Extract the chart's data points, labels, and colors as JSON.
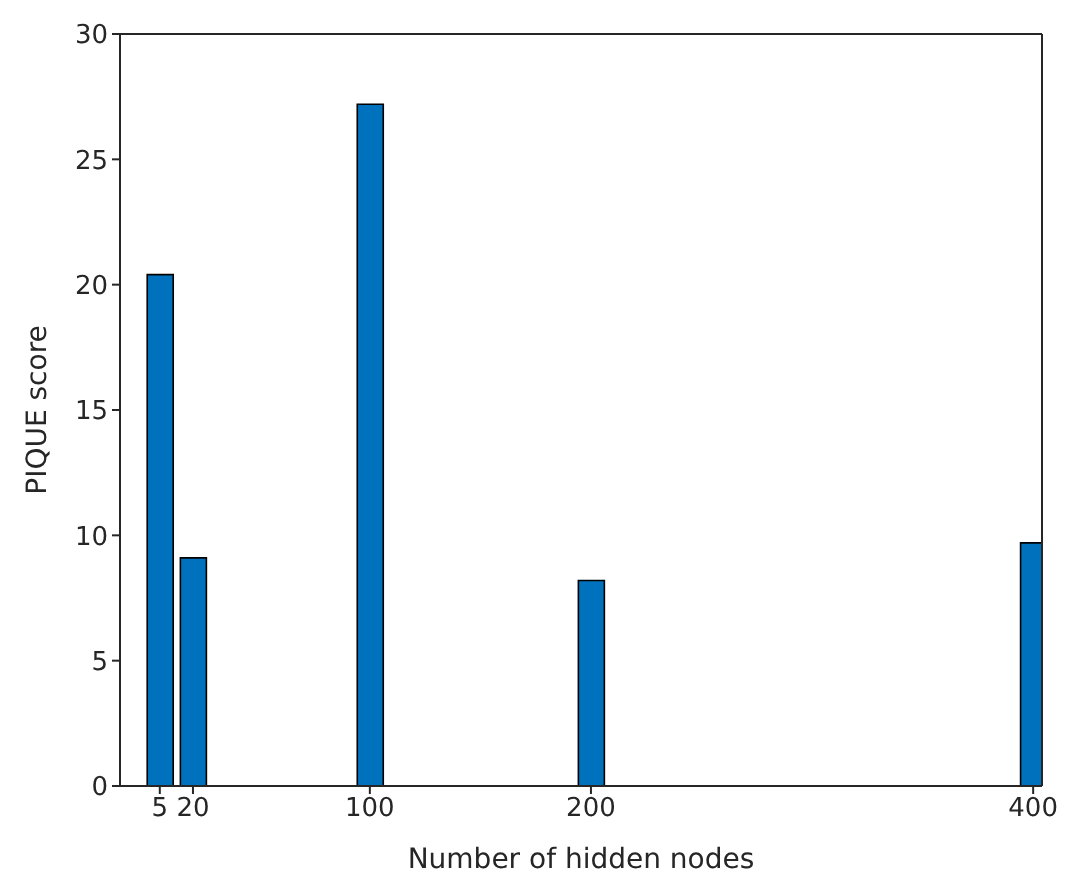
{
  "chart_data": {
    "type": "bar",
    "xlabel": "Number of hidden nodes",
    "ylabel": "PIQUE score",
    "x": [
      5,
      20,
      100,
      200,
      400
    ],
    "values": [
      20.4,
      9.1,
      27.2,
      8.2,
      9.7
    ],
    "color": "#0072bd",
    "xlim": [
      -13,
      404
    ],
    "xticks": [
      5,
      20,
      100,
      200,
      400
    ],
    "ylim": [
      0,
      30
    ],
    "yticks": [
      0,
      5,
      10,
      15,
      20,
      25,
      30
    ]
  }
}
